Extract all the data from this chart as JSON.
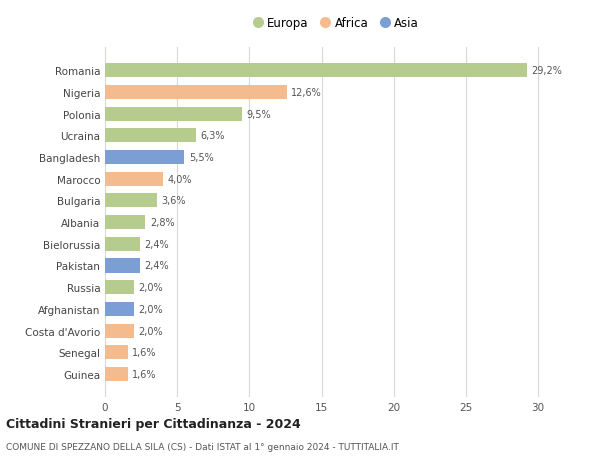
{
  "categories": [
    "Guinea",
    "Senegal",
    "Costa d'Avorio",
    "Afghanistan",
    "Russia",
    "Pakistan",
    "Bielorussia",
    "Albania",
    "Bulgaria",
    "Marocco",
    "Bangladesh",
    "Ucraina",
    "Polonia",
    "Nigeria",
    "Romania"
  ],
  "values": [
    1.6,
    1.6,
    2.0,
    2.0,
    2.0,
    2.4,
    2.4,
    2.8,
    3.6,
    4.0,
    5.5,
    6.3,
    9.5,
    12.6,
    29.2
  ],
  "labels": [
    "1,6%",
    "1,6%",
    "2,0%",
    "2,0%",
    "2,0%",
    "2,4%",
    "2,4%",
    "2,8%",
    "3,6%",
    "4,0%",
    "5,5%",
    "6,3%",
    "9,5%",
    "12,6%",
    "29,2%"
  ],
  "colors": [
    "#f4bc8e",
    "#f4bc8e",
    "#f4bc8e",
    "#7b9fd4",
    "#b5cc8e",
    "#7b9fd4",
    "#b5cc8e",
    "#b5cc8e",
    "#b5cc8e",
    "#f4bc8e",
    "#7b9fd4",
    "#b5cc8e",
    "#b5cc8e",
    "#f4bc8e",
    "#b5cc8e"
  ],
  "legend_labels": [
    "Europa",
    "Africa",
    "Asia"
  ],
  "legend_colors": [
    "#b5cc8e",
    "#f4bc8e",
    "#7b9fd4"
  ],
  "title": "Cittadini Stranieri per Cittadinanza - 2024",
  "subtitle": "COMUNE DI SPEZZANO DELLA SILA (CS) - Dati ISTAT al 1° gennaio 2024 - TUTTITALIA.IT",
  "xlim": [
    0,
    32
  ],
  "xticks": [
    0,
    5,
    10,
    15,
    20,
    25,
    30
  ],
  "bg_color": "#ffffff",
  "grid_color": "#d8d8d8",
  "bar_height": 0.65
}
